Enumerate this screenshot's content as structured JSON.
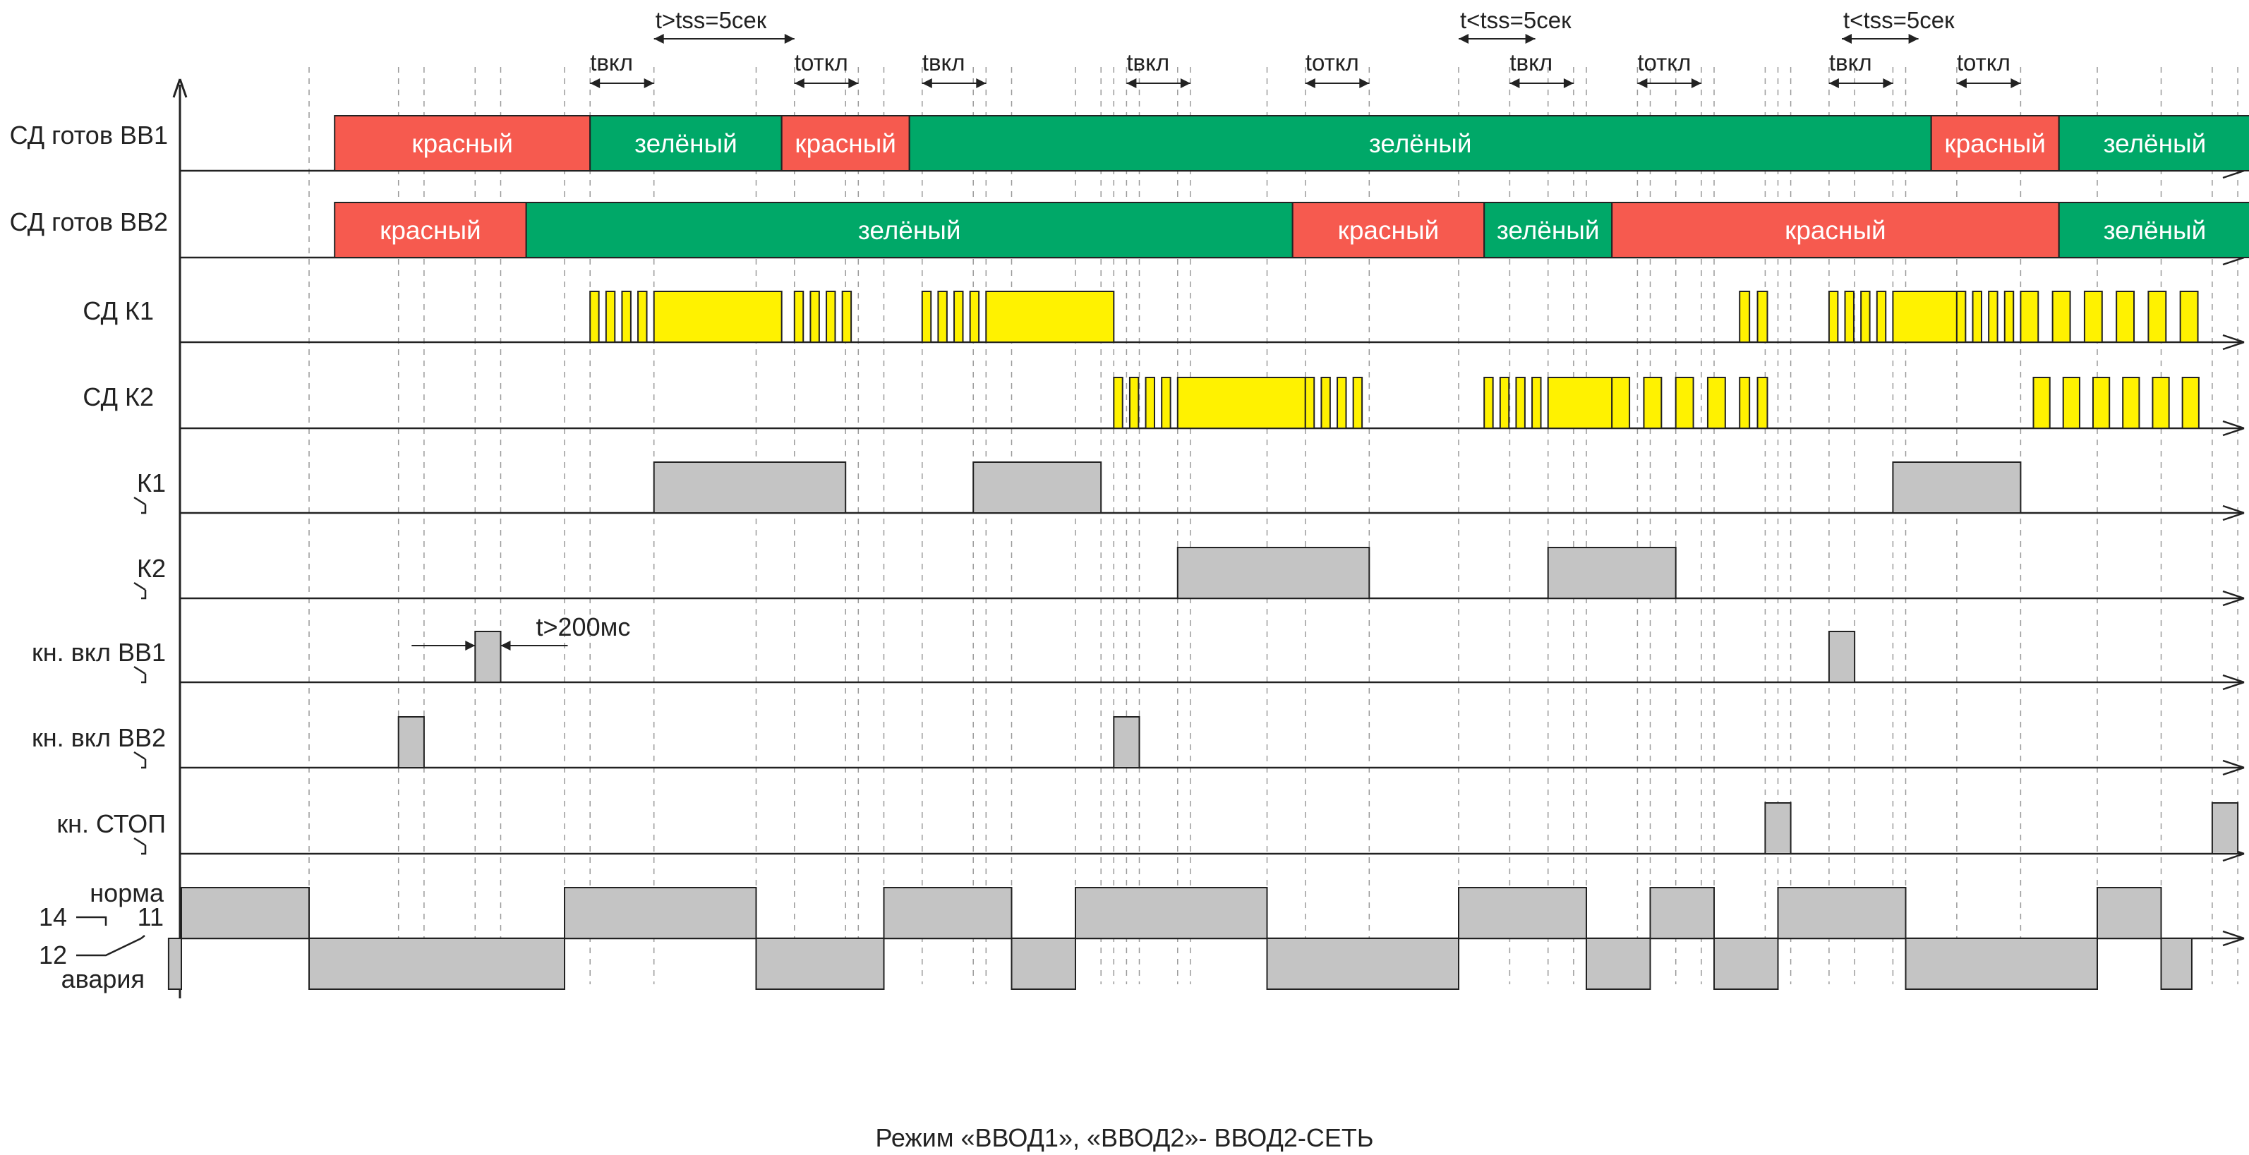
{
  "colors": {
    "red": "#f65a4f",
    "green": "#00a868",
    "yellow": "#fff200",
    "gray": "#c4c4c4",
    "line": "#222222",
    "grid": "#9a9a9a"
  },
  "time_markers": [
    {
      "text": "t>tss=5сек",
      "from": 18.5,
      "to": 24
    },
    {
      "text": "t<tss=5сек",
      "from": 50,
      "to": 53
    },
    {
      "text": "t<tss=5сек",
      "from": 65,
      "to": 68
    }
  ],
  "phase_markers": [
    {
      "text": "tвкл",
      "from": 16,
      "to": 18.5
    },
    {
      "text": "tоткл",
      "from": 24,
      "to": 26.5
    },
    {
      "text": "tвкл",
      "from": 29,
      "to": 31.5
    },
    {
      "text": "tвкл",
      "from": 37,
      "to": 39.5
    },
    {
      "text": "tоткл",
      "from": 44,
      "to": 46.5
    },
    {
      "text": "tвкл",
      "from": 52,
      "to": 54.5
    },
    {
      "text": "tоткл",
      "from": 57,
      "to": 59.5
    },
    {
      "text": "tвкл",
      "from": 64.5,
      "to": 67
    },
    {
      "text": "tоткл",
      "from": 69.5,
      "to": 72
    }
  ],
  "rows": [
    {
      "id": "sd-vv1",
      "label": "СД готов ВВ1",
      "kind": "state",
      "segments": [
        {
          "from": 6,
          "to": 16,
          "color": "red",
          "text": "красный"
        },
        {
          "from": 16,
          "to": 23.5,
          "color": "green",
          "text": "зелёный"
        },
        {
          "from": 23.5,
          "to": 28.5,
          "color": "red",
          "text": "красный"
        },
        {
          "from": 28.5,
          "to": 68.5,
          "color": "green",
          "text": "зелёный"
        },
        {
          "from": 68.5,
          "to": 73.5,
          "color": "red",
          "text": "красный"
        },
        {
          "from": 73.5,
          "to": 81,
          "color": "green",
          "text": "зелёный"
        }
      ]
    },
    {
      "id": "sd-vv2",
      "label": "СД готов ВВ2",
      "kind": "state",
      "segments": [
        {
          "from": 6,
          "to": 13.5,
          "color": "red",
          "text": "красный"
        },
        {
          "from": 13.5,
          "to": 43.5,
          "color": "green",
          "text": "зелёный"
        },
        {
          "from": 43.5,
          "to": 51,
          "color": "red",
          "text": "красный"
        },
        {
          "from": 51,
          "to": 56,
          "color": "green",
          "text": "зелёный"
        },
        {
          "from": 56,
          "to": 73.5,
          "color": "red",
          "text": "красный"
        },
        {
          "from": 73.5,
          "to": 81,
          "color": "green",
          "text": "зелёный"
        }
      ]
    },
    {
      "id": "sd-k1",
      "label": "СД К1",
      "kind": "led",
      "blinks": [
        {
          "from": 16,
          "to": 18.5,
          "count": 4
        },
        {
          "from": 24,
          "to": 26.5,
          "count": 4
        },
        {
          "from": 29,
          "to": 31.5,
          "count": 4
        },
        {
          "from": 61,
          "to": 62.4,
          "count": 2
        },
        {
          "from": 64.5,
          "to": 67,
          "count": 4
        },
        {
          "from": 69.5,
          "to": 72,
          "count": 4
        },
        {
          "from": 72,
          "to": 79.5,
          "count": 6
        }
      ],
      "steady": [
        {
          "from": 18.5,
          "to": 23.5
        },
        {
          "from": 31.5,
          "to": 36.5
        },
        {
          "from": 67,
          "to": 69.5
        }
      ]
    },
    {
      "id": "sd-k2",
      "label": "СД К2",
      "kind": "led",
      "blinks": [
        {
          "from": 36.5,
          "to": 39,
          "count": 4
        },
        {
          "from": 44,
          "to": 46.5,
          "count": 4
        },
        {
          "from": 51,
          "to": 53.5,
          "count": 4
        },
        {
          "from": 56,
          "to": 61,
          "count": 4
        },
        {
          "from": 61,
          "to": 62.4,
          "count": 2
        },
        {
          "from": 72.5,
          "to": 79.5,
          "count": 6
        }
      ],
      "steady": [
        {
          "from": 39,
          "to": 44
        },
        {
          "from": 53.5,
          "to": 56
        }
      ]
    },
    {
      "id": "k1",
      "label": "К1",
      "kind": "relay",
      "pulses": [
        {
          "from": 18.5,
          "to": 26
        },
        {
          "from": 31,
          "to": 36
        },
        {
          "from": 67,
          "to": 72
        }
      ]
    },
    {
      "id": "k2",
      "label": "К2",
      "kind": "relay",
      "pulses": [
        {
          "from": 39,
          "to": 46.5
        },
        {
          "from": 53.5,
          "to": 58.5
        }
      ]
    },
    {
      "id": "kn-vkl-vv1",
      "label": "кн. вкл ВВ1",
      "kind": "relay",
      "pulses": [
        {
          "from": 11.5,
          "to": 12.5
        },
        {
          "from": 64.5,
          "to": 65.5
        }
      ]
    },
    {
      "id": "kn-vkl-vv2",
      "label": "кн. вкл ВВ2",
      "kind": "relay",
      "pulses": [
        {
          "from": 8.5,
          "to": 9.5
        },
        {
          "from": 36.5,
          "to": 37.5
        }
      ]
    },
    {
      "id": "kn-stop",
      "label": "кн. СТОП",
      "kind": "relay",
      "pulses": [
        {
          "from": 62,
          "to": 63
        },
        {
          "from": 79.5,
          "to": 80.5
        }
      ]
    },
    {
      "id": "norma-avaria",
      "kind": "dual",
      "labels": {
        "top": "норма",
        "pin14": "14",
        "pin11": "11",
        "pin12": "12",
        "bottom": "авария"
      },
      "segments": [
        {
          "from": -0.5,
          "to": 0,
          "level": "low"
        },
        {
          "from": 0,
          "to": 5,
          "level": "high"
        },
        {
          "from": 5,
          "to": 15,
          "level": "low"
        },
        {
          "from": 15,
          "to": 22.5,
          "level": "high"
        },
        {
          "from": 22.5,
          "to": 27.5,
          "level": "low"
        },
        {
          "from": 27.5,
          "to": 32.5,
          "level": "high"
        },
        {
          "from": 32.5,
          "to": 35,
          "level": "low"
        },
        {
          "from": 35,
          "to": 42.5,
          "level": "high"
        },
        {
          "from": 42.5,
          "to": 50,
          "level": "low"
        },
        {
          "from": 50,
          "to": 55,
          "level": "high"
        },
        {
          "from": 55,
          "to": 57.5,
          "level": "low"
        },
        {
          "from": 57.5,
          "to": 60,
          "level": "high"
        },
        {
          "from": 60,
          "to": 62.5,
          "level": "low"
        },
        {
          "from": 62.5,
          "to": 67.5,
          "level": "high"
        },
        {
          "from": 67.5,
          "to": 75,
          "level": "low"
        },
        {
          "from": 75,
          "to": 77.5,
          "level": "high"
        },
        {
          "from": 77.5,
          "to": 78.7,
          "level": "low"
        }
      ]
    }
  ],
  "annotation": {
    "text": "t>200мс",
    "at": 12.5
  },
  "caption": "Режим  «ВВОД1», «ВВОД2»- ВВОД2-СЕТЬ"
}
